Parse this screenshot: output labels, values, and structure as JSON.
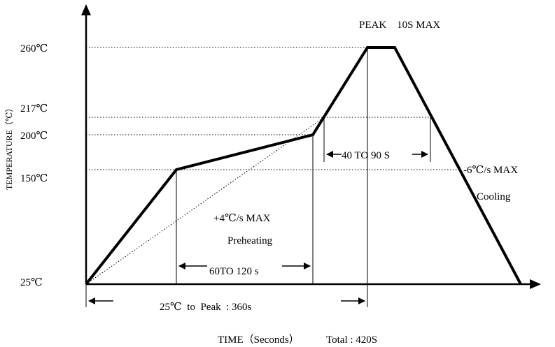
{
  "chart_data": {
    "type": "line",
    "title": "",
    "xlabel": "TIME（Seconds）",
    "xlabel_total": "Total : 420S",
    "ylabel": "TEMPERATURE（℃）",
    "y_ticks": [
      "260℃",
      "217℃",
      "200℃",
      "150℃",
      "25℃"
    ],
    "series": [
      {
        "points": [
          [
            0,
            25
          ],
          [
            90,
            150
          ],
          [
            220,
            200
          ],
          [
            270,
            260
          ],
          [
            300,
            260
          ],
          [
            420,
            25
          ]
        ]
      }
    ],
    "reference_line": {
      "points": [
        [
          0,
          25
        ],
        [
          230,
          217
        ]
      ]
    },
    "annotations": {
      "peak": "PEAK　10S MAX",
      "preheat_rate": "+4℃/s MAX",
      "preheat_label": "Preheating",
      "cool_rate": "-6℃/s MAX",
      "cool_label": "Cooling",
      "preheat_window": "60TO 120 s",
      "reflow_window": "40 TO 90 S",
      "to_peak": "25℃  to  Peak  : 360s"
    }
  }
}
